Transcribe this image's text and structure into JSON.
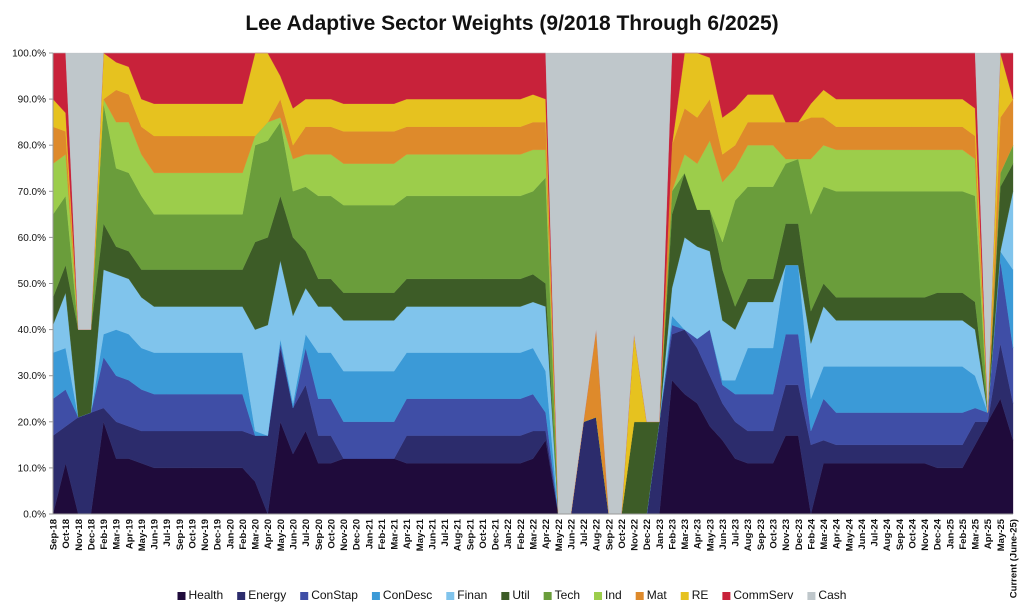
{
  "chart_data": {
    "type": "stacked_area",
    "title": "Lee Adaptive Sector Weights (9/2018 Through 6/2025)",
    "categories": [
      "Sep-18",
      "Oct-18",
      "Nov-18",
      "Dec-18",
      "Feb-19",
      "Mar-19",
      "Apr-19",
      "May-19",
      "Jun-19",
      "Jul-19",
      "Sep-19",
      "Oct-19",
      "Nov-19",
      "Dec-19",
      "Jan-20",
      "Feb-20",
      "Mar-20",
      "Apr-20",
      "May-20",
      "Jun-20",
      "Jul-20",
      "Sep-20",
      "Oct-20",
      "Nov-20",
      "Dec-20",
      "Jan-21",
      "Feb-21",
      "Mar-21",
      "Apr-21",
      "May-21",
      "Jun-21",
      "Jul-21",
      "Aug-21",
      "Sep-21",
      "Oct-21",
      "Dec-21",
      "Jan-22",
      "Feb-22",
      "Mar-22",
      "Apr-22",
      "May-22",
      "Jun-22",
      "Jul-22",
      "Aug-22",
      "Sep-22",
      "Oct-22",
      "Nov-22",
      "Dec-22",
      "Jan-23",
      "Feb-23",
      "Mar-23",
      "Apr-23",
      "May-23",
      "Jun-23",
      "Jul-23",
      "Aug-23",
      "Sep-23",
      "Oct-23",
      "Nov-23",
      "Dec-23",
      "Feb-24",
      "Mar-24",
      "Apr-24",
      "May-24",
      "Jun-24",
      "Jul-24",
      "Aug-24",
      "Sep-24",
      "Oct-24",
      "Nov-24",
      "Dec-24",
      "Jan-25",
      "Feb-25",
      "Mar-25",
      "Apr-25",
      "May-25",
      "Current (June-25)"
    ],
    "series": [
      {
        "name": "Health",
        "color": "#1f0b3b",
        "values": [
          0,
          11,
          0,
          0,
          20,
          12,
          12,
          11,
          10,
          10,
          10,
          10,
          10,
          10,
          10,
          10,
          7,
          0,
          20,
          13,
          18,
          11,
          11,
          12,
          12,
          12,
          12,
          12,
          11,
          11,
          11,
          11,
          11,
          11,
          11,
          11,
          11,
          11,
          12,
          16,
          0,
          0,
          0,
          0,
          0,
          0,
          0,
          0,
          0,
          29,
          26,
          24,
          19,
          16,
          12,
          11,
          11,
          11,
          17,
          17,
          0,
          11,
          11,
          11,
          11,
          11,
          11,
          11,
          11,
          11,
          10,
          10,
          10,
          15,
          20,
          25,
          16
        ]
      },
      {
        "name": "Energy",
        "color": "#2c2c6c",
        "values": [
          17,
          8,
          21,
          22,
          3,
          8,
          7,
          7,
          8,
          8,
          8,
          8,
          8,
          8,
          8,
          8,
          10,
          17,
          16,
          10,
          10,
          6,
          6,
          0,
          0,
          0,
          0,
          0,
          6,
          6,
          6,
          6,
          6,
          6,
          6,
          6,
          6,
          6,
          6,
          2,
          0,
          0,
          20,
          21,
          0,
          0,
          0,
          0,
          20,
          10,
          14,
          12,
          11,
          8,
          8,
          7,
          7,
          7,
          11,
          11,
          15,
          5,
          4,
          4,
          4,
          4,
          4,
          4,
          4,
          4,
          5,
          5,
          5,
          5,
          0,
          12,
          8
        ]
      },
      {
        "name": "ConStap",
        "color": "#3f4ea6",
        "values": [
          8,
          8,
          0,
          0,
          11,
          10,
          10,
          9,
          8,
          8,
          8,
          8,
          8,
          8,
          8,
          8,
          0,
          0,
          1,
          0,
          8,
          8,
          8,
          8,
          8,
          8,
          8,
          8,
          8,
          8,
          8,
          8,
          8,
          8,
          8,
          8,
          8,
          8,
          8,
          4,
          0,
          0,
          0,
          0,
          0,
          0,
          0,
          0,
          0,
          2,
          0,
          2,
          10,
          4,
          6,
          8,
          8,
          8,
          11,
          11,
          3,
          9,
          7,
          7,
          7,
          7,
          7,
          7,
          7,
          7,
          7,
          7,
          7,
          3,
          2,
          18,
          12
        ]
      },
      {
        "name": "ConDesc",
        "color": "#3b9ad7",
        "values": [
          10,
          9,
          0,
          0,
          5,
          10,
          10,
          9,
          9,
          9,
          9,
          9,
          9,
          9,
          9,
          9,
          1,
          0,
          1,
          1,
          3,
          10,
          10,
          11,
          11,
          11,
          11,
          11,
          10,
          10,
          10,
          10,
          10,
          10,
          10,
          10,
          10,
          10,
          10,
          9,
          0,
          0,
          0,
          0,
          0,
          0,
          0,
          0,
          0,
          2,
          0,
          0,
          0,
          1,
          3,
          10,
          10,
          10,
          15,
          15,
          7,
          7,
          10,
          10,
          10,
          10,
          10,
          10,
          10,
          10,
          10,
          10,
          10,
          7,
          0,
          2,
          17
        ]
      },
      {
        "name": "Finan",
        "color": "#80c4ec",
        "values": [
          6,
          12,
          0,
          0,
          14,
          12,
          12,
          11,
          10,
          10,
          10,
          10,
          10,
          10,
          10,
          10,
          22,
          24,
          17,
          19,
          10,
          10,
          10,
          11,
          11,
          11,
          11,
          11,
          10,
          10,
          10,
          10,
          10,
          10,
          10,
          10,
          10,
          10,
          10,
          14,
          0,
          0,
          0,
          0,
          0,
          0,
          0,
          0,
          0,
          6,
          20,
          20,
          17,
          13,
          11,
          10,
          10,
          10,
          0,
          0,
          12,
          13,
          10,
          10,
          10,
          10,
          10,
          10,
          10,
          10,
          10,
          10,
          10,
          10,
          0,
          0,
          17
        ]
      },
      {
        "name": "Util",
        "color": "#3d5c27",
        "values": [
          6,
          6,
          19,
          18,
          10,
          6,
          6,
          6,
          8,
          8,
          8,
          8,
          8,
          8,
          8,
          8,
          19,
          19,
          14,
          17,
          8,
          6,
          6,
          6,
          6,
          6,
          6,
          6,
          6,
          6,
          6,
          6,
          6,
          6,
          6,
          6,
          6,
          6,
          6,
          5,
          0,
          0,
          0,
          0,
          0,
          0,
          20,
          20,
          0,
          16,
          14,
          8,
          9,
          11,
          5,
          5,
          5,
          5,
          9,
          9,
          7,
          5,
          5,
          5,
          5,
          5,
          5,
          5,
          5,
          5,
          6,
          6,
          6,
          6,
          0,
          14,
          6
        ]
      },
      {
        "name": "Tech",
        "color": "#6a9d3b",
        "values": [
          18,
          15,
          0,
          0,
          26,
          17,
          17,
          16,
          12,
          12,
          12,
          12,
          12,
          12,
          12,
          12,
          21,
          21,
          16,
          10,
          14,
          18,
          18,
          19,
          19,
          19,
          19,
          19,
          18,
          18,
          18,
          18,
          18,
          18,
          18,
          18,
          18,
          18,
          18,
          23,
          0,
          0,
          0,
          0,
          0,
          0,
          0,
          0,
          0,
          5,
          0,
          0,
          0,
          6,
          23,
          20,
          20,
          20,
          13,
          14,
          21,
          21,
          23,
          23,
          23,
          23,
          23,
          23,
          23,
          23,
          22,
          22,
          22,
          23,
          0,
          3,
          4
        ]
      },
      {
        "name": "Ind",
        "color": "#9ccd4b",
        "values": [
          11,
          9,
          0,
          0,
          1,
          10,
          11,
          9,
          9,
          9,
          9,
          9,
          9,
          9,
          9,
          9,
          2,
          4,
          1,
          7,
          7,
          9,
          9,
          9,
          9,
          9,
          9,
          9,
          9,
          9,
          9,
          9,
          9,
          9,
          9,
          9,
          9,
          9,
          9,
          6,
          0,
          0,
          0,
          0,
          0,
          0,
          0,
          0,
          0,
          0,
          4,
          10,
          15,
          13,
          7,
          9,
          9,
          9,
          1,
          0,
          12,
          9,
          9,
          9,
          9,
          9,
          9,
          9,
          9,
          9,
          9,
          9,
          9,
          8,
          0,
          0,
          0
        ]
      },
      {
        "name": "Mat",
        "color": "#de8a2b",
        "values": [
          8,
          5,
          0,
          0,
          0,
          7,
          6,
          6,
          8,
          8,
          8,
          8,
          8,
          8,
          8,
          8,
          0,
          0,
          4,
          3,
          6,
          6,
          6,
          7,
          7,
          7,
          7,
          7,
          6,
          6,
          6,
          6,
          6,
          6,
          6,
          6,
          6,
          6,
          6,
          6,
          0,
          0,
          0,
          19,
          0,
          0,
          0,
          0,
          0,
          10,
          10,
          10,
          9,
          6,
          5,
          5,
          5,
          5,
          8,
          8,
          9,
          6,
          5,
          5,
          5,
          5,
          5,
          5,
          5,
          5,
          5,
          5,
          5,
          5,
          0,
          12,
          10
        ]
      },
      {
        "name": "RE",
        "color": "#e6c21f",
        "values": [
          6,
          4,
          0,
          0,
          10,
          6,
          6,
          6,
          7,
          7,
          7,
          7,
          7,
          7,
          7,
          7,
          18,
          15,
          5,
          8,
          6,
          6,
          6,
          6,
          6,
          6,
          6,
          6,
          6,
          6,
          6,
          6,
          6,
          6,
          6,
          6,
          6,
          6,
          6,
          5,
          0,
          0,
          0,
          0,
          0,
          0,
          19,
          0,
          0,
          0,
          12,
          14,
          9,
          8,
          8,
          6,
          6,
          6,
          0,
          0,
          3,
          6,
          6,
          6,
          6,
          6,
          6,
          6,
          6,
          6,
          6,
          6,
          6,
          6,
          0,
          14,
          0
        ]
      },
      {
        "name": "CommServ",
        "color": "#c8223a",
        "values": [
          10,
          13,
          0,
          0,
          0,
          2,
          3,
          10,
          11,
          11,
          11,
          11,
          11,
          11,
          11,
          11,
          0,
          0,
          5,
          12,
          10,
          10,
          10,
          11,
          11,
          11,
          11,
          11,
          10,
          10,
          10,
          10,
          10,
          10,
          10,
          10,
          10,
          10,
          9,
          10,
          0,
          0,
          0,
          0,
          0,
          0,
          0,
          0,
          0,
          20,
          0,
          0,
          1,
          14,
          12,
          9,
          9,
          9,
          15,
          15,
          11,
          8,
          10,
          10,
          10,
          10,
          10,
          10,
          10,
          10,
          10,
          10,
          10,
          12,
          0,
          0,
          10
        ]
      },
      {
        "name": "Cash",
        "color": "#bfc7cb",
        "values": [
          0,
          0,
          60,
          60,
          0,
          0,
          0,
          0,
          0,
          0,
          0,
          0,
          0,
          0,
          0,
          0,
          0,
          0,
          0,
          0,
          0,
          0,
          0,
          0,
          0,
          0,
          0,
          0,
          0,
          0,
          0,
          0,
          0,
          0,
          0,
          0,
          0,
          0,
          0,
          0,
          100,
          100,
          80,
          60,
          100,
          100,
          61,
          80,
          80,
          0,
          0,
          0,
          0,
          0,
          0,
          0,
          0,
          0,
          0,
          0,
          0,
          0,
          0,
          0,
          0,
          0,
          0,
          0,
          0,
          0,
          0,
          0,
          0,
          0,
          78,
          0,
          0
        ]
      }
    ],
    "ylim": [
      0,
      100
    ],
    "yticks": [
      {
        "value": 0,
        "label": "0.0%"
      },
      {
        "value": 10,
        "label": "10.0%"
      },
      {
        "value": 20,
        "label": "20.0%"
      },
      {
        "value": 30,
        "label": "30.0%"
      },
      {
        "value": 40,
        "label": "40.0%"
      },
      {
        "value": 50,
        "label": "50.0%"
      },
      {
        "value": 60,
        "label": "60.0%"
      },
      {
        "value": 70,
        "label": "70.0%"
      },
      {
        "value": 80,
        "label": "80.0%"
      },
      {
        "value": 90,
        "label": "90.0%"
      },
      {
        "value": 100,
        "label": "100.0%"
      }
    ],
    "grid": false,
    "legend": "bottom"
  }
}
